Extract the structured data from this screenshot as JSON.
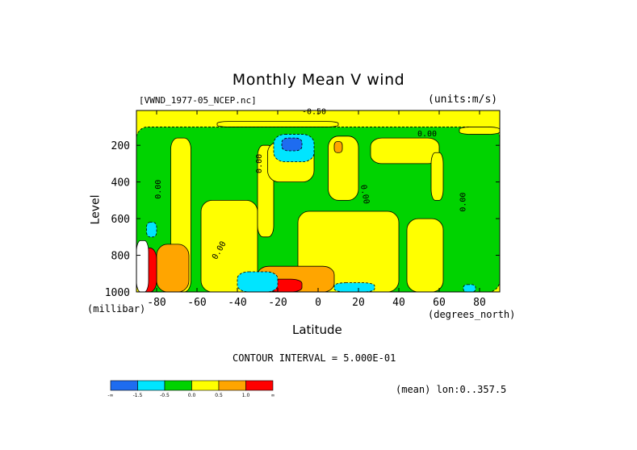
{
  "chart_data": {
    "type": "heatmap",
    "title": "Monthly Mean V wind",
    "dataset": "[VWND_1977-05_NCEP.nc]",
    "units": "(units:m/s)",
    "xlabel": "Latitude",
    "x_units": "(degrees_north)",
    "ylabel": "Level",
    "y_units": "(millibar)",
    "xlim": [
      -90,
      90
    ],
    "ylim": [
      1000,
      10
    ],
    "x_ticks": [
      -80,
      -60,
      -40,
      -20,
      0,
      20,
      40,
      60,
      80
    ],
    "y_ticks": [
      200,
      400,
      600,
      800,
      1000
    ],
    "contour_interval_text": "CONTOUR INTERVAL = 5.000E-01",
    "mean_text": "(mean) lon:0..357.5",
    "contour_labels": [
      "0.00",
      "0.00",
      "0.00",
      "0.00",
      "0.00",
      "0.00",
      "-0.50"
    ],
    "legend": {
      "colors": [
        "#1e6cf0",
        "#00e5ff",
        "#00d300",
        "#ffff00",
        "#ffa500",
        "#ff0000"
      ],
      "boundaries": [
        "-∞",
        "-1.5",
        "-0.5",
        "0.0",
        "0.5",
        "1.0",
        "∞"
      ]
    },
    "regions": [
      {
        "level": "neg",
        "x": [
          -90,
          90
        ],
        "y": [
          1000,
          100
        ]
      },
      {
        "level": "pos_low",
        "x": [
          -73,
          -63
        ],
        "y": [
          1000,
          160
        ]
      },
      {
        "level": "pos_low",
        "x": [
          -58,
          -30
        ],
        "y": [
          1000,
          500
        ]
      },
      {
        "level": "pos_low",
        "x": [
          -30,
          -22
        ],
        "y": [
          700,
          200
        ]
      },
      {
        "level": "pos_low",
        "x": [
          -25,
          -2
        ],
        "y": [
          400,
          180
        ]
      },
      {
        "level": "pos_low",
        "x": [
          -10,
          40
        ],
        "y": [
          1000,
          560
        ]
      },
      {
        "level": "pos_low",
        "x": [
          5,
          20
        ],
        "y": [
          500,
          150
        ]
      },
      {
        "level": "pos_low",
        "x": [
          26,
          60
        ],
        "y": [
          300,
          160
        ]
      },
      {
        "level": "pos_low",
        "x": [
          44,
          62
        ],
        "y": [
          1000,
          600
        ]
      },
      {
        "level": "pos_low",
        "x": [
          56,
          62
        ],
        "y": [
          500,
          240
        ]
      },
      {
        "level": "pos_low",
        "x": [
          -50,
          10
        ],
        "y": [
          100,
          70
        ]
      },
      {
        "level": "pos_low",
        "x": [
          70,
          90
        ],
        "y": [
          140,
          100
        ]
      },
      {
        "level": "pos_mid",
        "x": [
          -80,
          -64
        ],
        "y": [
          1000,
          740
        ]
      },
      {
        "level": "pos_mid",
        "x": [
          -30,
          8
        ],
        "y": [
          1000,
          860
        ]
      },
      {
        "level": "pos_mid",
        "x": [
          8,
          12
        ],
        "y": [
          240,
          180
        ]
      },
      {
        "level": "pos_high",
        "x": [
          -25,
          -8
        ],
        "y": [
          1000,
          930
        ]
      },
      {
        "level": "pos_high",
        "x": [
          -90,
          -80
        ],
        "y": [
          1000,
          760
        ]
      },
      {
        "level": "neg_mid",
        "x": [
          -40,
          -20
        ],
        "y": [
          1000,
          890
        ]
      },
      {
        "level": "neg_mid",
        "x": [
          -85,
          -80
        ],
        "y": [
          700,
          620
        ]
      },
      {
        "level": "neg_mid",
        "x": [
          -22,
          -2
        ],
        "y": [
          290,
          140
        ]
      },
      {
        "level": "neg_high",
        "x": [
          -18,
          -8
        ],
        "y": [
          230,
          160
        ]
      },
      {
        "level": "neg_mid",
        "x": [
          8,
          28
        ],
        "y": [
          1000,
          950
        ]
      },
      {
        "level": "neg_mid",
        "x": [
          72,
          78
        ],
        "y": [
          1000,
          960
        ]
      },
      {
        "level": "white",
        "x": [
          -90,
          -84
        ],
        "y": [
          1000,
          720
        ]
      }
    ]
  }
}
